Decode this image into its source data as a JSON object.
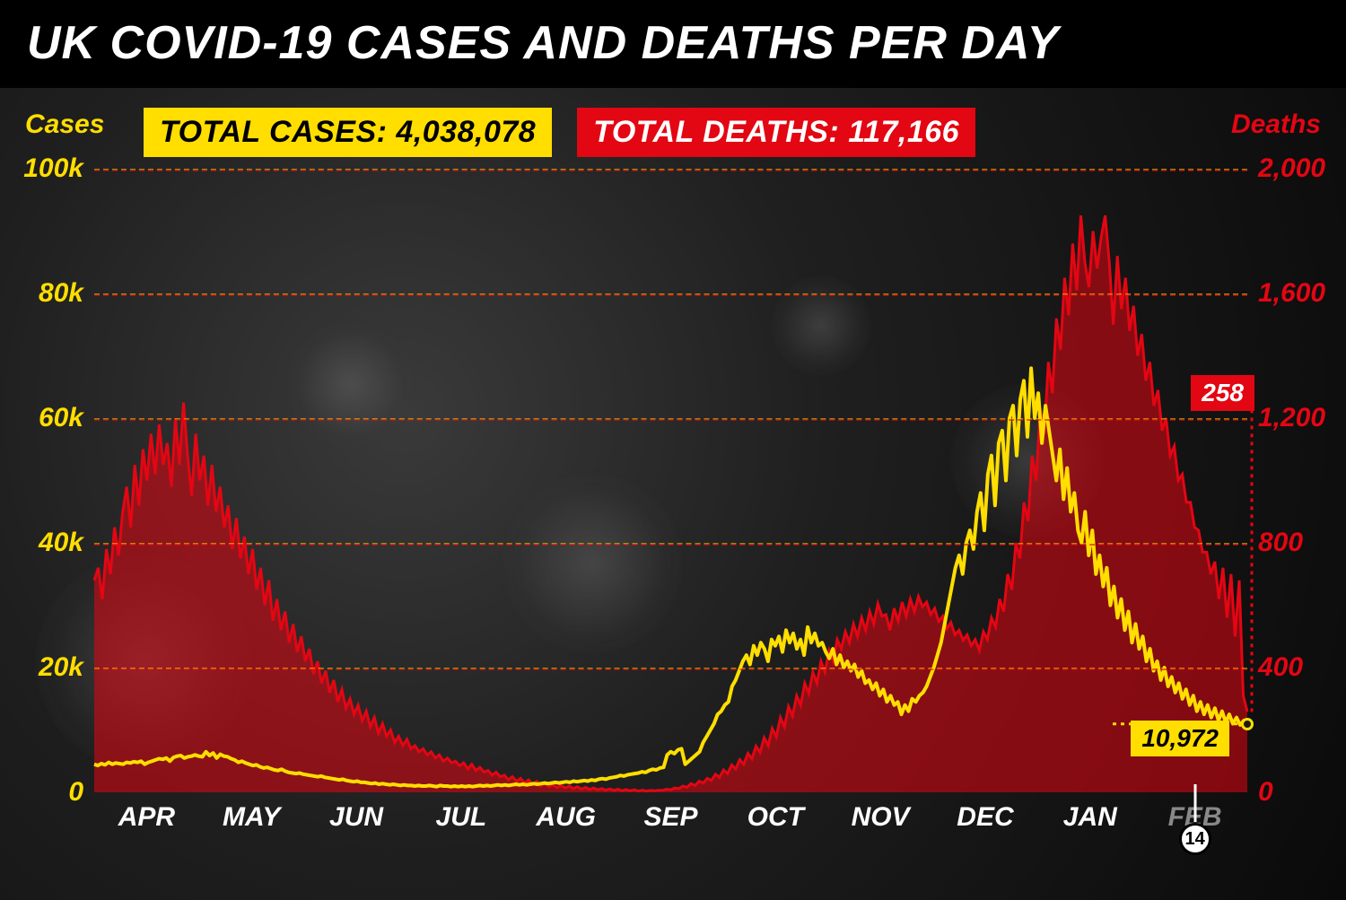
{
  "title": "UK COVID-19 CASES AND DEATHS PER DAY",
  "badges": {
    "cases_label": "TOTAL CASES: 4,038,078",
    "deaths_label": "TOTAL DEATHS: 117,166"
  },
  "axis_labels": {
    "left": "Cases",
    "right": "Deaths"
  },
  "colors": {
    "cases": "#ffde00",
    "deaths": "#e30613",
    "deaths_fill": "rgba(227,6,19,0.55)",
    "background": "#1a1a1a",
    "title_bg": "#000000",
    "title_fg": "#ffffff",
    "grid_yellow": "rgba(255,222,0,0.55)",
    "grid_red": "rgba(227,6,19,0.6)"
  },
  "left_axis": {
    "max": 100000,
    "ticks": [
      0,
      20000,
      40000,
      60000,
      80000,
      100000
    ],
    "tick_labels": [
      "0",
      "20k",
      "40k",
      "60k",
      "80k",
      "100k"
    ]
  },
  "right_axis": {
    "max": 2000,
    "ticks": [
      0,
      400,
      800,
      1200,
      1600,
      2000
    ],
    "tick_labels": [
      "0",
      "400",
      "800",
      "1,200",
      "1,600",
      "2,000"
    ]
  },
  "months": [
    "APR",
    "MAY",
    "JUN",
    "JUL",
    "AUG",
    "SEP",
    "OCT",
    "NOV",
    "DEC",
    "JAN",
    "FEB"
  ],
  "day_marker": {
    "month_index": 10,
    "day_label": "14"
  },
  "callouts": {
    "deaths": {
      "value": "258",
      "value_num": 258
    },
    "cases": {
      "value": "10,972",
      "value_num": 10972
    }
  },
  "chart": {
    "type": "dual-axis-line-area",
    "x_count": 321,
    "line_width_cases": 4,
    "line_width_deaths": 3,
    "cases_series": [
      4500,
      4300,
      4600,
      4400,
      4800,
      4500,
      4700,
      4600,
      4500,
      4800,
      4700,
      4900,
      4800,
      5000,
      4500,
      4800,
      5000,
      5200,
      5400,
      5300,
      5500,
      5000,
      5600,
      5800,
      5900,
      5500,
      5700,
      5800,
      6000,
      5800,
      5700,
      6500,
      5900,
      6300,
      5500,
      6100,
      5800,
      5700,
      5400,
      5200,
      4800,
      5000,
      4700,
      4500,
      4300,
      4400,
      4100,
      3900,
      4000,
      3800,
      3600,
      3500,
      3700,
      3400,
      3200,
      3100,
      3000,
      3100,
      2900,
      2800,
      2700,
      2600,
      2500,
      2600,
      2400,
      2300,
      2200,
      2100,
      2000,
      2100,
      1900,
      1800,
      1700,
      1800,
      1600,
      1600,
      1500,
      1400,
      1500,
      1300,
      1400,
      1300,
      1200,
      1300,
      1200,
      1100,
      1200,
      1100,
      1100,
      1000,
      1100,
      1000,
      1000,
      1100,
      1000,
      900,
      1100,
      1000,
      1000,
      900,
      1000,
      900,
      1000,
      900,
      1000,
      900,
      1000,
      1100,
      1000,
      1100,
      1000,
      1100,
      1200,
      1100,
      1200,
      1100,
      1200,
      1300,
      1200,
      1300,
      1200,
      1300,
      1400,
      1300,
      1400,
      1500,
      1400,
      1500,
      1600,
      1500,
      1600,
      1700,
      1600,
      1800,
      1700,
      1800,
      1900,
      1800,
      2000,
      1900,
      2100,
      2200,
      2100,
      2300,
      2400,
      2500,
      2700,
      2600,
      2800,
      2900,
      3000,
      3100,
      3300,
      3200,
      3500,
      3700,
      3600,
      3900,
      4000,
      6000,
      6500,
      6200,
      6800,
      7000,
      4500,
      5000,
      5500,
      6000,
      6500,
      8000,
      9000,
      10000,
      11000,
      12500,
      13000,
      14000,
      14500,
      17000,
      18000,
      19500,
      21000,
      22000,
      20500,
      23500,
      22000,
      24000,
      23000,
      21000,
      24500,
      23500,
      25000,
      22500,
      26000,
      24000,
      25500,
      23000,
      24500,
      22000,
      26500,
      24000,
      25500,
      23500,
      24000,
      22500,
      21500,
      23000,
      20500,
      22000,
      20000,
      21000,
      19500,
      20500,
      18500,
      19500,
      17500,
      18000,
      16500,
      17500,
      15500,
      16500,
      14500,
      15500,
      14000,
      14500,
      12500,
      14000,
      13000,
      15000,
      14500,
      15500,
      16000,
      17000,
      18500,
      20000,
      22000,
      24000,
      27000,
      30000,
      33000,
      36000,
      38000,
      35000,
      40000,
      42000,
      39000,
      45000,
      48000,
      42000,
      51000,
      54000,
      46000,
      56000,
      58000,
      50000,
      60000,
      62000,
      54000,
      63000,
      66000,
      57000,
      68000,
      60000,
      64000,
      56000,
      62000,
      58000,
      54000,
      50000,
      55000,
      47000,
      52000,
      45000,
      48000,
      42000,
      40000,
      45000,
      38000,
      42000,
      35000,
      38000,
      33000,
      36000,
      30000,
      33000,
      28000,
      31000,
      26000,
      29000,
      24000,
      27000,
      23000,
      25000,
      21000,
      23000,
      19500,
      21000,
      18000,
      20000,
      17000,
      18500,
      16000,
      17500,
      15000,
      16500,
      14000,
      15500,
      13000,
      14500,
      12500,
      14000,
      12000,
      13500,
      11500,
      13000,
      11200,
      12500,
      11000,
      12000,
      10800,
      11500,
      10972
    ],
    "deaths_series": [
      680,
      720,
      620,
      780,
      700,
      850,
      760,
      900,
      980,
      850,
      1050,
      920,
      1100,
      1000,
      1150,
      1020,
      1180,
      1050,
      1120,
      980,
      1200,
      1050,
      1250,
      1080,
      950,
      1150,
      1000,
      1080,
      920,
      1050,
      900,
      980,
      850,
      920,
      780,
      880,
      750,
      820,
      700,
      780,
      650,
      720,
      600,
      680,
      550,
      620,
      520,
      580,
      480,
      540,
      450,
      500,
      420,
      460,
      380,
      420,
      350,
      390,
      320,
      360,
      290,
      330,
      270,
      300,
      250,
      280,
      230,
      260,
      210,
      240,
      190,
      220,
      180,
      200,
      160,
      180,
      150,
      170,
      140,
      150,
      130,
      140,
      120,
      130,
      110,
      120,
      100,
      110,
      95,
      100,
      85,
      95,
      75,
      90,
      70,
      80,
      65,
      70,
      55,
      65,
      50,
      55,
      40,
      50,
      35,
      45,
      30,
      40,
      25,
      35,
      20,
      30,
      18,
      25,
      15,
      22,
      14,
      20,
      12,
      18,
      10,
      16,
      9,
      14,
      8,
      12,
      7,
      11,
      6,
      10,
      5,
      9,
      5,
      8,
      4,
      7,
      4,
      6,
      5,
      7,
      6,
      10,
      8,
      14,
      12,
      20,
      16,
      28,
      22,
      36,
      30,
      45,
      38,
      58,
      48,
      72,
      60,
      88,
      75,
      105,
      90,
      125,
      108,
      148,
      128,
      175,
      150,
      205,
      178,
      240,
      210,
      275,
      245,
      310,
      280,
      350,
      318,
      385,
      350,
      420,
      385,
      455,
      420,
      490,
      460,
      515,
      480,
      540,
      500,
      560,
      520,
      580,
      540,
      605,
      565,
      570,
      520,
      590,
      550,
      610,
      565,
      620,
      580,
      628,
      595,
      610,
      570,
      590,
      548,
      565,
      525,
      545,
      505,
      520,
      488,
      505,
      470,
      490,
      455,
      515,
      490,
      560,
      530,
      620,
      580,
      700,
      650,
      800,
      750,
      930,
      870,
      1080,
      1000,
      1230,
      1150,
      1380,
      1280,
      1520,
      1420,
      1650,
      1530,
      1760,
      1610,
      1850,
      1700,
      1620,
      1800,
      1680,
      1780,
      1850,
      1700,
      1500,
      1720,
      1550,
      1650,
      1480,
      1560,
      1400,
      1470,
      1320,
      1380,
      1240,
      1290,
      1160,
      1200,
      1080,
      1110,
      1000,
      1020,
      930,
      930,
      850,
      840,
      770,
      770,
      700,
      740,
      620,
      720,
      560,
      700,
      500,
      680,
      310,
      258
    ]
  },
  "typography": {
    "title_fontsize": 52,
    "axis_label_fontsize": 30,
    "tick_fontsize": 30,
    "badge_fontsize": 34,
    "callout_fontsize": 28
  }
}
